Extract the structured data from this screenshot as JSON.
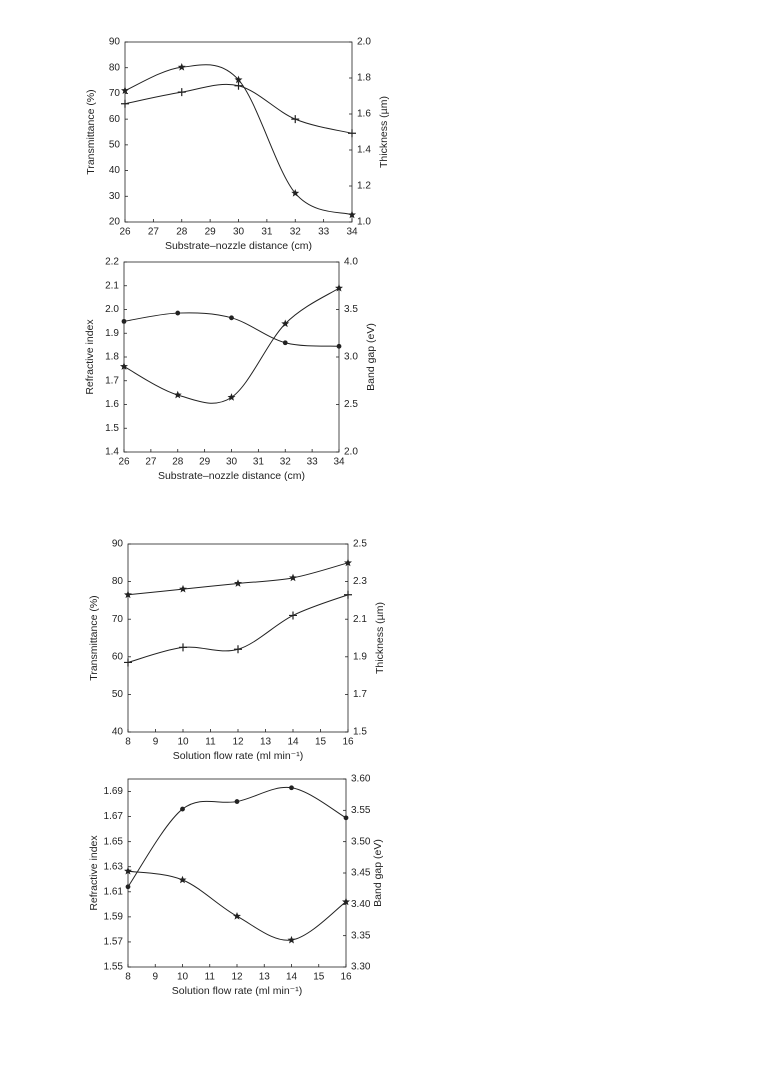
{
  "chart_data": [
    {
      "type": "line",
      "x_label": "Substrate–nozzle distance (cm)",
      "y_label": "Transmittance (%)",
      "y2_label": "Thickness (µm)",
      "x": [
        26,
        28,
        30,
        32,
        34
      ],
      "xlim": [
        26,
        34
      ],
      "xticks": [
        26,
        27,
        28,
        29,
        30,
        31,
        32,
        33,
        34
      ],
      "ylim": [
        20,
        90
      ],
      "yticks": [
        20,
        30,
        40,
        50,
        60,
        70,
        80,
        90
      ],
      "y2lim": [
        1.0,
        2.0
      ],
      "y2ticks": [
        {
          "value": 1.0,
          "label": "1.0"
        },
        1.2,
        1.4,
        1.6,
        1.8,
        {
          "value": 2.0,
          "label": "2.0"
        }
      ],
      "series": [
        {
          "color": "#222222",
          "marker": "plus",
          "values": [
            66,
            70.5,
            73,
            60,
            54.5
          ]
        },
        {
          "color": "#222222",
          "marker": "star",
          "axis": "y2",
          "values": [
            1.73,
            1.86,
            1.79,
            1.16,
            1.04
          ]
        }
      ]
    },
    {
      "type": "line",
      "x_label": "Substrate–nozzle distance (cm)",
      "y_label": "Refractive index",
      "y2_label": "Band gap (eV)",
      "x": [
        26,
        28,
        30,
        32,
        34
      ],
      "xlim": [
        26,
        34
      ],
      "xticks": [
        26,
        27,
        28,
        29,
        30,
        31,
        32,
        33,
        34
      ],
      "ylim": [
        1.4,
        2.2
      ],
      "yticks": [
        1.4,
        1.5,
        1.6,
        1.7,
        1.8,
        1.9,
        {
          "value": 2.0,
          "label": "2.0"
        },
        2.1,
        2.2
      ],
      "y2lim": [
        2.0,
        4.0
      ],
      "y2ticks": [
        {
          "value": 2.0,
          "label": "2.0"
        },
        2.5,
        {
          "value": 3.0,
          "label": "3.0"
        },
        3.5,
        {
          "value": 4.0,
          "label": "4.0"
        }
      ],
      "series": [
        {
          "color": "#222222",
          "marker": "dot",
          "values": [
            1.95,
            1.985,
            1.965,
            1.86,
            1.845
          ]
        },
        {
          "color": "#222222",
          "marker": "star",
          "axis": "y2",
          "values": [
            2.9,
            2.6,
            2.575,
            3.35,
            3.725
          ]
        }
      ]
    },
    {
      "type": "line",
      "x_label": "Solution flow rate (ml min⁻¹)",
      "y_label": "Transmittance (%)",
      "y2_label": "Thickness (µm)",
      "x": [
        8,
        10,
        12,
        14,
        16
      ],
      "xlim": [
        8,
        16
      ],
      "xticks": [
        8,
        9,
        10,
        11,
        12,
        13,
        14,
        15,
        16
      ],
      "ylim": [
        40,
        90
      ],
      "yticks": [
        40,
        50,
        60,
        70,
        80,
        90
      ],
      "y2lim": [
        1.5,
        2.5
      ],
      "y2ticks": [
        1.5,
        1.7,
        1.9,
        2.1,
        2.3,
        2.5
      ],
      "series": [
        {
          "color": "#222222",
          "marker": "star",
          "values": [
            76.5,
            78,
            79.5,
            81,
            85
          ]
        },
        {
          "color": "#222222",
          "marker": "plus",
          "axis": "y2",
          "values": [
            1.87,
            1.95,
            1.94,
            2.12,
            2.23
          ]
        }
      ]
    },
    {
      "type": "line",
      "x_label": "Solution flow rate (ml min⁻¹)",
      "y_label": "Refractive index",
      "y2_label": "Band gap (eV)",
      "x": [
        8,
        10,
        12,
        14,
        16
      ],
      "xlim": [
        8,
        16
      ],
      "xticks": [
        8,
        9,
        10,
        11,
        12,
        13,
        14,
        15,
        16
      ],
      "ylim": [
        1.55,
        1.7
      ],
      "yticks": [
        1.55,
        1.57,
        1.59,
        1.61,
        1.63,
        1.65,
        1.67,
        1.69
      ],
      "y2lim": [
        3.3,
        3.6
      ],
      "y2ticks": [
        {
          "value": 3.3,
          "label": "3.30"
        },
        3.35,
        {
          "value": 3.4,
          "label": "3.40"
        },
        3.45,
        {
          "value": 3.5,
          "label": "3.50"
        },
        3.55,
        {
          "value": 3.6,
          "label": "3.60"
        }
      ],
      "series": [
        {
          "color": "#222222",
          "marker": "dot",
          "values": [
            1.614,
            1.676,
            1.682,
            1.693,
            1.669
          ]
        },
        {
          "color": "#222222",
          "marker": "star",
          "axis": "y2",
          "values": [
            3.453,
            3.439,
            3.381,
            3.343,
            3.404
          ]
        }
      ]
    }
  ]
}
